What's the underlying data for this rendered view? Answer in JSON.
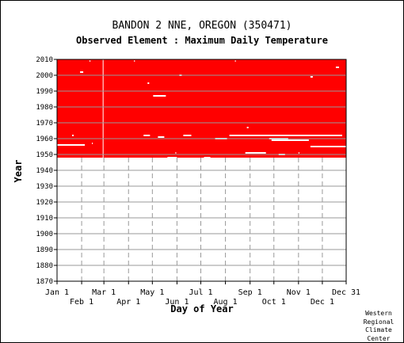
{
  "title": "BANDON 2 NNE, OREGON   (350471)",
  "subtitle": "Observed Element : Maximum Daily Temperature",
  "credit": [
    "Western",
    "Regional",
    "Climate",
    "Center"
  ],
  "colors": {
    "data": "#ff0000",
    "grid": "#999999",
    "background": "#ffffff",
    "text": "#000000"
  },
  "chart_data": {
    "type": "heatmap",
    "xlabel": "Day of Year",
    "ylabel": "Year",
    "xlim": [
      1,
      365
    ],
    "ylim": [
      1870,
      2010
    ],
    "grid": true,
    "y_ticks": [
      1870,
      1880,
      1890,
      1900,
      1910,
      1920,
      1930,
      1940,
      1950,
      1960,
      1970,
      1980,
      1990,
      2000,
      2010
    ],
    "x_ticks_top_row": [
      {
        "label": "Jan 1",
        "day": 1
      },
      {
        "label": "Mar 1",
        "day": 60
      },
      {
        "label": "May 1",
        "day": 121
      },
      {
        "label": "Jul 1",
        "day": 182
      },
      {
        "label": "Sep 1",
        "day": 244
      },
      {
        "label": "Nov 1",
        "day": 305
      },
      {
        "label": "Dec 31",
        "day": 365
      }
    ],
    "x_ticks_bottom_row": [
      {
        "label": "Feb 1",
        "day": 32
      },
      {
        "label": "Apr 1",
        "day": 91
      },
      {
        "label": "Jun 1",
        "day": 152
      },
      {
        "label": "Aug 1",
        "day": 213
      },
      {
        "label": "Oct 1",
        "day": 274
      },
      {
        "label": "Dec 1",
        "day": 335
      }
    ],
    "data_coverage": {
      "start_year": 1948,
      "end_year": 2010,
      "days": [
        1,
        365
      ]
    },
    "missing_segments": [
      {
        "year": 1987,
        "start_day": 122,
        "end_day": 138
      },
      {
        "year": 2000,
        "start_day": 155,
        "end_day": 158
      },
      {
        "year": 1995,
        "start_day": 115,
        "end_day": 117
      },
      {
        "year": 1962,
        "start_day": 218,
        "end_day": 360
      },
      {
        "year": 1960,
        "start_day": 200,
        "end_day": 215
      },
      {
        "year": 1960,
        "start_day": 268,
        "end_day": 292
      },
      {
        "year": 1959,
        "start_day": 271,
        "end_day": 318
      },
      {
        "year": 1956,
        "start_day": 1,
        "end_day": 36
      },
      {
        "year": 1955,
        "start_day": 320,
        "end_day": 365
      },
      {
        "year": 1951,
        "start_day": 238,
        "end_day": 264
      },
      {
        "year": 1950,
        "start_day": 280,
        "end_day": 288
      },
      {
        "year": 1948,
        "start_day": 140,
        "end_day": 152
      },
      {
        "year": 1948,
        "start_day": 186,
        "end_day": 194
      },
      {
        "year": 2005,
        "start_day": 352,
        "end_day": 356
      },
      {
        "year": 2002,
        "start_day": 30,
        "end_day": 34
      },
      {
        "year": 1999,
        "start_day": 320,
        "end_day": 323
      },
      {
        "year": 1957,
        "start_day": 45,
        "end_day": 46
      },
      {
        "year": 1951,
        "start_day": 150,
        "end_day": 151
      },
      {
        "year": 1951,
        "start_day": 305,
        "end_day": 306
      },
      {
        "year": 1962,
        "start_day": 20,
        "end_day": 22
      },
      {
        "year": 1962,
        "start_day": 110,
        "end_day": 118
      },
      {
        "year": 1962,
        "start_day": 160,
        "end_day": 170
      },
      {
        "year": 1961,
        "start_day": 128,
        "end_day": 136
      },
      {
        "year": 1967,
        "start_day": 240,
        "end_day": 242
      },
      {
        "year": 2009,
        "start_day": 42,
        "end_day": 43
      },
      {
        "year": 2009,
        "start_day": 98,
        "end_day": 99
      },
      {
        "year": 2009,
        "start_day": 225,
        "end_day": 226
      }
    ],
    "gap_line": {
      "day": 59,
      "start_year": 1948,
      "end_year": 2010
    }
  }
}
